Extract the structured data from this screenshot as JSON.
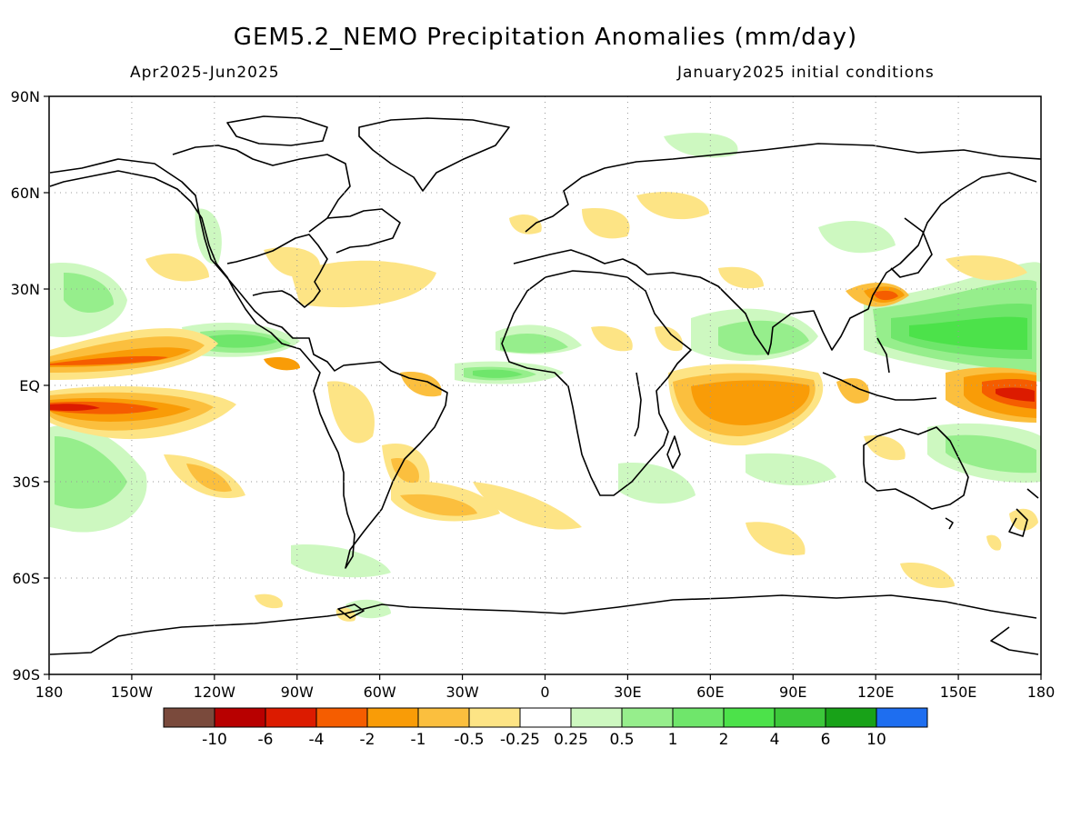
{
  "title": "GEM5.2_NEMO Precipitation Anomalies (mm/day)",
  "period": "Apr2025-Jun2025",
  "initial_conditions": "January2025 initial conditions",
  "map": {
    "projection": "equirectangular",
    "lon_range": [
      -180,
      180
    ],
    "lat_range": [
      -90,
      90
    ],
    "grid": "dotted",
    "lat_ticks": [
      "90N",
      "60N",
      "30N",
      "EQ",
      "30S",
      "60S",
      "90S"
    ],
    "lon_ticks": [
      "180",
      "150W",
      "120W",
      "90W",
      "60W",
      "30W",
      "0",
      "30E",
      "60E",
      "90E",
      "120E",
      "150E",
      "180"
    ]
  },
  "colorbar": {
    "colors": [
      "#7a4a3c",
      "#b80000",
      "#dc1b00",
      "#f55d00",
      "#f99c07",
      "#fbbf3e",
      "#fde485",
      "#ffffff",
      "#cdf8c0",
      "#96ee8c",
      "#6fe66b",
      "#4ce24a",
      "#3cc83a",
      "#18a218",
      "#1e6ef0"
    ],
    "labels": [
      "-10",
      "-6",
      "-4",
      "-2",
      "-1",
      "-0.5",
      "-0.25",
      "0.25",
      "0.5",
      "1",
      "2",
      "4",
      "6",
      "10"
    ]
  },
  "colors": {
    "dry_strong": "#dc1b00",
    "dry_moderate": "#f99c07",
    "dry_weak": "#fbbf3e",
    "dry_faint": "#fde485",
    "wet_faint": "#cdf8c0",
    "wet_weak": "#96ee8c",
    "wet_moderate": "#6fe66b",
    "wet_strong": "#4ce24a"
  }
}
